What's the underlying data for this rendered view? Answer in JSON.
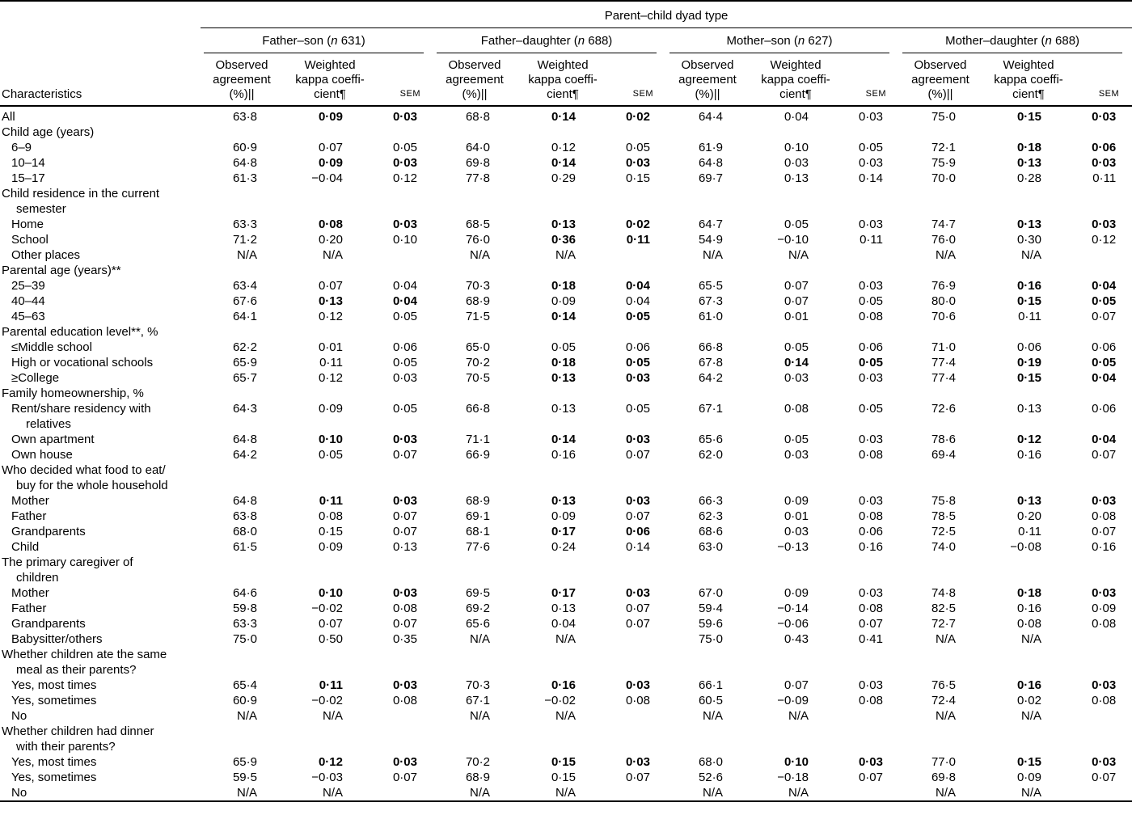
{
  "table": {
    "spanner": "Parent–child dyad type",
    "characteristics_header": "Characteristics",
    "groups": [
      {
        "pre": "Father–son (",
        "it": "n",
        "post": " 631)"
      },
      {
        "pre": "Father–daughter (",
        "it": "n",
        "post": " 688)"
      },
      {
        "pre": "Mother–son (",
        "it": "n",
        "post": " 627)"
      },
      {
        "pre": "Mother–daughter (",
        "it": "n",
        "post": " 688)"
      }
    ],
    "col_headers": {
      "observed_lines": [
        "Observed",
        "agreement",
        "(%)||"
      ],
      "kappa_lines": [
        "Weighted",
        "kappa coeffi-",
        "cient¶"
      ],
      "sem": "SEM"
    },
    "rows": [
      {
        "label": [
          "All"
        ],
        "ind": 0,
        "cells": [
          "63·8",
          "0·09",
          "0·03",
          "68·8",
          "0·14",
          "0·02",
          "64·4",
          "0·04",
          "0·03",
          "75·0",
          "0·15",
          "0·03"
        ],
        "bold": [
          1,
          2,
          4,
          5,
          10,
          11
        ]
      },
      {
        "label": [
          "Child age (years)"
        ],
        "ind": 0
      },
      {
        "label": [
          "6–9"
        ],
        "ind": 1,
        "cells": [
          "60·9",
          "0·07",
          "0·05",
          "64·0",
          "0·12",
          "0·05",
          "61·9",
          "0·10",
          "0·05",
          "72·1",
          "0·18",
          "0·06"
        ],
        "bold": [
          10,
          11
        ]
      },
      {
        "label": [
          "10–14"
        ],
        "ind": 1,
        "cells": [
          "64·8",
          "0·09",
          "0·03",
          "69·8",
          "0·14",
          "0·03",
          "64·8",
          "0·03",
          "0·03",
          "75·9",
          "0·13",
          "0·03"
        ],
        "bold": [
          1,
          2,
          4,
          5,
          10,
          11
        ]
      },
      {
        "label": [
          "15–17"
        ],
        "ind": 1,
        "cells": [
          "61·3",
          "−0·04",
          "0·12",
          "77·8",
          "0·29",
          "0·15",
          "69·7",
          "0·13",
          "0·14",
          "70·0",
          "0·28",
          "0·11"
        ],
        "bold": []
      },
      {
        "label": [
          "Child residence in the current",
          "semester"
        ],
        "ind": 0
      },
      {
        "label": [
          "Home"
        ],
        "ind": 1,
        "cells": [
          "63·3",
          "0·08",
          "0·03",
          "68·5",
          "0·13",
          "0·02",
          "64·7",
          "0·05",
          "0·03",
          "74·7",
          "0·13",
          "0·03"
        ],
        "bold": [
          1,
          2,
          4,
          5,
          10,
          11
        ]
      },
      {
        "label": [
          "School"
        ],
        "ind": 1,
        "cells": [
          "71·2",
          "0·20",
          "0·10",
          "76·0",
          "0·36",
          "0·11",
          "54·9",
          "−0·10",
          "0·11",
          "76·0",
          "0·30",
          "0·12"
        ],
        "bold": [
          4,
          5
        ]
      },
      {
        "label": [
          "Other places"
        ],
        "ind": 1,
        "cells": [
          "N/A",
          "N/A",
          "",
          "N/A",
          "N/A",
          "",
          "N/A",
          "N/A",
          "",
          "N/A",
          "N/A",
          ""
        ],
        "bold": []
      },
      {
        "label": [
          "Parental age (years)**"
        ],
        "ind": 0
      },
      {
        "label": [
          "25–39"
        ],
        "ind": 1,
        "cells": [
          "63·4",
          "0·07",
          "0·04",
          "70·3",
          "0·18",
          "0·04",
          "65·5",
          "0·07",
          "0·03",
          "76·9",
          "0·16",
          "0·04"
        ],
        "bold": [
          4,
          5,
          10,
          11
        ]
      },
      {
        "label": [
          "40–44"
        ],
        "ind": 1,
        "cells": [
          "67·6",
          "0·13",
          "0·04",
          "68·9",
          "0·09",
          "0·04",
          "67·3",
          "0·07",
          "0·05",
          "80·0",
          "0·15",
          "0·05"
        ],
        "bold": [
          1,
          2,
          10,
          11
        ]
      },
      {
        "label": [
          "45–63"
        ],
        "ind": 1,
        "cells": [
          "64·1",
          "0·12",
          "0·05",
          "71·5",
          "0·14",
          "0·05",
          "61·0",
          "0·01",
          "0·08",
          "70·6",
          "0·11",
          "0·07"
        ],
        "bold": [
          4,
          5
        ]
      },
      {
        "label": [
          "Parental education level**, %"
        ],
        "ind": 0
      },
      {
        "label": [
          "≤Middle school"
        ],
        "ind": 1,
        "cells": [
          "62·2",
          "0·01",
          "0·06",
          "65·0",
          "0·05",
          "0·06",
          "66·8",
          "0·05",
          "0·06",
          "71·0",
          "0·06",
          "0·06"
        ],
        "bold": []
      },
      {
        "label": [
          "High or vocational schools"
        ],
        "ind": 1,
        "cells": [
          "65·9",
          "0·11",
          "0·05",
          "70·2",
          "0·18",
          "0·05",
          "67·8",
          "0·14",
          "0·05",
          "77·4",
          "0·19",
          "0·05"
        ],
        "bold": [
          4,
          5,
          7,
          8,
          10,
          11
        ]
      },
      {
        "label": [
          "≥College"
        ],
        "ind": 1,
        "cells": [
          "65·7",
          "0·12",
          "0·03",
          "70·5",
          "0·13",
          "0·03",
          "64·2",
          "0·03",
          "0·03",
          "77·4",
          "0·15",
          "0·04"
        ],
        "bold": [
          4,
          5,
          10,
          11
        ]
      },
      {
        "label": [
          "Family homeownership, %"
        ],
        "ind": 0
      },
      {
        "label": [
          "Rent/share residency with",
          "relatives"
        ],
        "ind": 1,
        "cells": [
          "64·3",
          "0·09",
          "0·05",
          "66·8",
          "0·13",
          "0·05",
          "67·1",
          "0·08",
          "0·05",
          "72·6",
          "0·13",
          "0·06"
        ],
        "bold": []
      },
      {
        "label": [
          "Own apartment"
        ],
        "ind": 1,
        "cells": [
          "64·8",
          "0·10",
          "0·03",
          "71·1",
          "0·14",
          "0·03",
          "65·6",
          "0·05",
          "0·03",
          "78·6",
          "0·12",
          "0·04"
        ],
        "bold": [
          1,
          2,
          4,
          5,
          10,
          11
        ]
      },
      {
        "label": [
          "Own house"
        ],
        "ind": 1,
        "cells": [
          "64·2",
          "0·05",
          "0·07",
          "66·9",
          "0·16",
          "0·07",
          "62·0",
          "0·03",
          "0·08",
          "69·4",
          "0·16",
          "0·07"
        ],
        "bold": []
      },
      {
        "label": [
          "Who decided what food to eat/",
          "buy for the whole household"
        ],
        "ind": 0
      },
      {
        "label": [
          "Mother"
        ],
        "ind": 1,
        "cells": [
          "64·8",
          "0·11",
          "0·03",
          "68·9",
          "0·13",
          "0·03",
          "66·3",
          "0·09",
          "0·03",
          "75·8",
          "0·13",
          "0·03"
        ],
        "bold": [
          1,
          2,
          4,
          5,
          10,
          11
        ]
      },
      {
        "label": [
          "Father"
        ],
        "ind": 1,
        "cells": [
          "63·8",
          "0·08",
          "0·07",
          "69·1",
          "0·09",
          "0·07",
          "62·3",
          "0·01",
          "0·08",
          "78·5",
          "0·20",
          "0·08"
        ],
        "bold": []
      },
      {
        "label": [
          "Grandparents"
        ],
        "ind": 1,
        "cells": [
          "68·0",
          "0·15",
          "0·07",
          "68·1",
          "0·17",
          "0·06",
          "68·6",
          "0·03",
          "0·06",
          "72·5",
          "0·11",
          "0·07"
        ],
        "bold": [
          4,
          5
        ]
      },
      {
        "label": [
          "Child"
        ],
        "ind": 1,
        "cells": [
          "61·5",
          "0·09",
          "0·13",
          "77·6",
          "0·24",
          "0·14",
          "63·0",
          "−0·13",
          "0·16",
          "74·0",
          "−0·08",
          "0·16"
        ],
        "bold": []
      },
      {
        "label": [
          "The primary caregiver of",
          "children"
        ],
        "ind": 0
      },
      {
        "label": [
          "Mother"
        ],
        "ind": 1,
        "cells": [
          "64·6",
          "0·10",
          "0·03",
          "69·5",
          "0·17",
          "0·03",
          "67·0",
          "0·09",
          "0·03",
          "74·8",
          "0·18",
          "0·03"
        ],
        "bold": [
          1,
          2,
          4,
          5,
          10,
          11
        ]
      },
      {
        "label": [
          "Father"
        ],
        "ind": 1,
        "cells": [
          "59·8",
          "−0·02",
          "0·08",
          "69·2",
          "0·13",
          "0·07",
          "59·4",
          "−0·14",
          "0·08",
          "82·5",
          "0·16",
          "0·09"
        ],
        "bold": []
      },
      {
        "label": [
          "Grandparents"
        ],
        "ind": 1,
        "cells": [
          "63·3",
          "0·07",
          "0·07",
          "65·6",
          "0·04",
          "0·07",
          "59·6",
          "−0·06",
          "0·07",
          "72·7",
          "0·08",
          "0·08"
        ],
        "bold": []
      },
      {
        "label": [
          "Babysitter/others"
        ],
        "ind": 1,
        "cells": [
          "75·0",
          "0·50",
          "0·35",
          "N/A",
          "N/A",
          "",
          "75·0",
          "0·43",
          "0·41",
          "N/A",
          "N/A",
          ""
        ],
        "bold": []
      },
      {
        "label": [
          "Whether children ate the same",
          "meal as their parents?"
        ],
        "ind": 0
      },
      {
        "label": [
          "Yes, most times"
        ],
        "ind": 1,
        "cells": [
          "65·4",
          "0·11",
          "0·03",
          "70·3",
          "0·16",
          "0·03",
          "66·1",
          "0·07",
          "0·03",
          "76·5",
          "0·16",
          "0·03"
        ],
        "bold": [
          1,
          2,
          4,
          5,
          10,
          11
        ]
      },
      {
        "label": [
          "Yes, sometimes"
        ],
        "ind": 1,
        "cells": [
          "60·9",
          "−0·02",
          "0·08",
          "67·1",
          "−0·02",
          "0·08",
          "60·5",
          "−0·09",
          "0·08",
          "72·4",
          "0·02",
          "0·08"
        ],
        "bold": []
      },
      {
        "label": [
          "No"
        ],
        "ind": 1,
        "cells": [
          "N/A",
          "N/A",
          "",
          "N/A",
          "N/A",
          "",
          "N/A",
          "N/A",
          "",
          "N/A",
          "N/A",
          ""
        ],
        "bold": []
      },
      {
        "label": [
          "Whether children had dinner",
          "with their parents?"
        ],
        "ind": 0
      },
      {
        "label": [
          "Yes, most times"
        ],
        "ind": 1,
        "cells": [
          "65·9",
          "0·12",
          "0·03",
          "70·2",
          "0·15",
          "0·03",
          "68·0",
          "0·10",
          "0·03",
          "77·0",
          "0·15",
          "0·03"
        ],
        "bold": [
          1,
          2,
          4,
          5,
          7,
          8,
          10,
          11
        ]
      },
      {
        "label": [
          "Yes, sometimes"
        ],
        "ind": 1,
        "cells": [
          "59·5",
          "−0·03",
          "0·07",
          "68·9",
          "0·15",
          "0·07",
          "52·6",
          "−0·18",
          "0·07",
          "69·8",
          "0·09",
          "0·07"
        ],
        "bold": []
      },
      {
        "label": [
          "No"
        ],
        "ind": 1,
        "cells": [
          "N/A",
          "N/A",
          "",
          "N/A",
          "N/A",
          "",
          "N/A",
          "N/A",
          "",
          "N/A",
          "N/A",
          ""
        ],
        "bold": []
      }
    ]
  }
}
